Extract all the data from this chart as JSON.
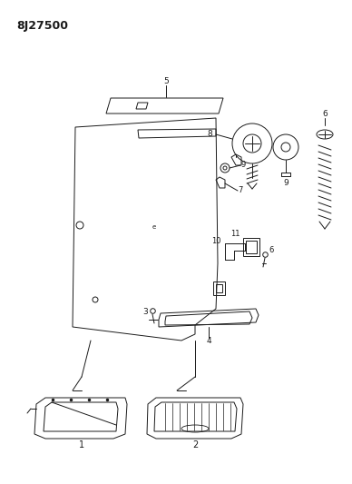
{
  "title": "8J27500",
  "bg_color": "#ffffff",
  "line_color": "#1a1a1a",
  "figsize": [
    3.88,
    5.33
  ],
  "dpi": 100
}
